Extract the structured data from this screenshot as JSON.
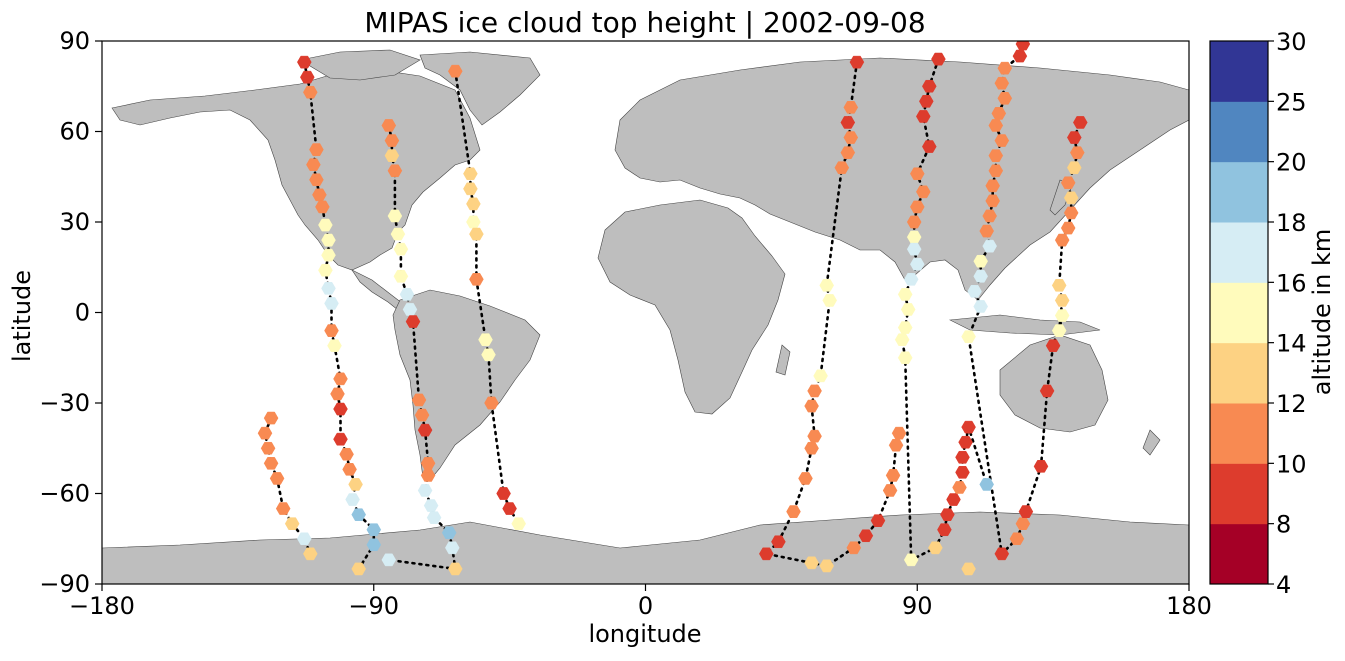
{
  "chart_data": {
    "type": "scatter",
    "title": "MIPAS ice cloud top height | 2002-09-08",
    "xlabel": "longitude",
    "ylabel": "latitude",
    "xlim": [
      -180,
      180
    ],
    "ylim": [
      -90,
      90
    ],
    "x_ticks": [
      "−180",
      "−90",
      "0",
      "90",
      "180"
    ],
    "x_tick_values": [
      -180,
      -90,
      0,
      90,
      180
    ],
    "y_ticks": [
      "−90",
      "−60",
      "−30",
      "0",
      "30",
      "60",
      "90"
    ],
    "y_tick_values": [
      -90,
      -60,
      -30,
      0,
      30,
      60,
      90
    ],
    "background": "world map, land shaded gray",
    "land_color": "#bebebe",
    "ocean_color": "#ffffff",
    "colorbar": {
      "label": "altitude in km",
      "boundaries": [
        4,
        8,
        10,
        12,
        14,
        16,
        18,
        20,
        25,
        30
      ],
      "tick_labels": [
        "4",
        "8",
        "10",
        "12",
        "14",
        "16",
        "18",
        "20",
        "25",
        "30"
      ],
      "colors": [
        "#a50026",
        "#d73027",
        "#f46d43",
        "#fdae61",
        "#fee090",
        "#e0f3f8",
        "#abd9e9",
        "#74add1",
        "#4575b4",
        "#313695"
      ],
      "display_colors": [
        "#a50026",
        "#dd3c2d",
        "#f88a52",
        "#fdd283",
        "#fffbbc",
        "#d6edf4",
        "#90c3df",
        "#5086c0",
        "#313695"
      ]
    },
    "series": [
      {
        "values": [
          [
            -113,
            83,
            9
          ],
          [
            -112,
            78,
            9
          ],
          [
            -111,
            73,
            10
          ],
          [
            -109,
            54,
            11
          ],
          [
            -110,
            49,
            11
          ],
          [
            -109,
            44,
            11
          ],
          [
            -108,
            39,
            11
          ],
          [
            -107,
            35,
            10
          ],
          [
            -106,
            29,
            14
          ],
          [
            -105,
            24,
            14
          ],
          [
            -105,
            19,
            14
          ],
          [
            -106,
            14,
            14
          ],
          [
            -105,
            8,
            16
          ],
          [
            -104,
            3,
            16
          ],
          [
            -104,
            -6,
            11
          ],
          [
            -103,
            -11,
            14
          ],
          [
            -101,
            -22,
            10
          ],
          [
            -102,
            -27,
            11
          ],
          [
            -101,
            -32,
            9
          ],
          [
            -101,
            -42,
            9
          ],
          [
            -99,
            -47,
            10
          ],
          [
            -98,
            -52,
            10
          ],
          [
            -96,
            -57,
            13
          ],
          [
            -97,
            -62,
            16
          ],
          [
            -95,
            -67,
            18
          ],
          [
            -90,
            -72,
            18
          ],
          [
            -90,
            -77,
            18
          ],
          [
            -95,
            -85,
            13
          ]
        ]
      },
      {
        "values": [
          [
            -85,
            62,
            10
          ],
          [
            -84,
            57,
            11
          ],
          [
            -84,
            52,
            12
          ],
          [
            -83,
            47,
            11
          ],
          [
            -83,
            32,
            14
          ],
          [
            -82,
            26,
            14
          ],
          [
            -81,
            21,
            14
          ],
          [
            -81,
            12,
            14
          ],
          [
            -79,
            6,
            16
          ],
          [
            -78,
            1,
            16
          ],
          [
            -77,
            -3,
            9
          ],
          [
            -75,
            -29,
            11
          ],
          [
            -74,
            -34,
            11
          ],
          [
            -73,
            -39,
            9
          ],
          [
            -72,
            -50,
            10
          ],
          [
            -72,
            -54,
            10
          ],
          [
            -73,
            -59,
            16
          ],
          [
            -71,
            -64,
            16
          ],
          [
            -70,
            -68,
            16
          ],
          [
            -65,
            -73,
            18
          ],
          [
            -64,
            -78,
            16
          ],
          [
            -63,
            -85,
            13
          ],
          [
            -85,
            -82,
            16
          ]
        ]
      },
      {
        "values": [
          [
            -63,
            80,
            10
          ],
          [
            -58,
            46,
            12
          ],
          [
            -58,
            41,
            12
          ],
          [
            -57,
            36,
            12
          ],
          [
            -57,
            30,
            14
          ],
          [
            -56,
            26,
            12
          ],
          [
            -56,
            11,
            11
          ],
          [
            -53,
            -9,
            14
          ],
          [
            -52,
            -14,
            14
          ],
          [
            -51,
            -30,
            11
          ],
          [
            -47,
            -60,
            8
          ],
          [
            -45,
            -65,
            8
          ],
          [
            -42,
            -70,
            14
          ]
        ]
      },
      {
        "values": [
          [
            -124,
            -35,
            11
          ],
          [
            -126,
            -40,
            11
          ],
          [
            -125,
            -45,
            10
          ],
          [
            -124,
            -50,
            11
          ],
          [
            -122,
            -55,
            11
          ],
          [
            -120,
            -65,
            10
          ],
          [
            -117,
            -70,
            13
          ],
          [
            -113,
            -75,
            16
          ],
          [
            -111,
            -80,
            13
          ]
        ]
      },
      {
        "values": [
          [
            70,
            83,
            9
          ],
          [
            68,
            68,
            10
          ],
          [
            67,
            63,
            9
          ],
          [
            68,
            58,
            10
          ],
          [
            67,
            53,
            11
          ],
          [
            65,
            48,
            10
          ],
          [
            60,
            9,
            14
          ],
          [
            61,
            4,
            14
          ],
          [
            58,
            -21,
            14
          ],
          [
            56,
            -26,
            11
          ],
          [
            55,
            -31,
            10
          ],
          [
            56,
            -41,
            11
          ],
          [
            55,
            -45,
            11
          ],
          [
            53,
            -55,
            11
          ],
          [
            49,
            -66,
            10
          ],
          [
            44,
            -76,
            9
          ],
          [
            40,
            -80,
            9
          ],
          [
            55,
            -83,
            13
          ],
          [
            60,
            -84,
            13
          ],
          [
            69,
            -78,
            11
          ],
          [
            73,
            -74,
            8
          ],
          [
            77,
            -69,
            8
          ],
          [
            81,
            -59,
            10
          ],
          [
            82,
            -54,
            11
          ],
          [
            83,
            -44,
            11
          ],
          [
            84,
            -40,
            10
          ]
        ]
      },
      {
        "values": [
          [
            97,
            84,
            9
          ],
          [
            94,
            75,
            9
          ],
          [
            93,
            70,
            8
          ],
          [
            92,
            65,
            8
          ],
          [
            94,
            55,
            9
          ],
          [
            90,
            46,
            10
          ],
          [
            92,
            40,
            11
          ],
          [
            90,
            35,
            11
          ],
          [
            89,
            30,
            10
          ],
          [
            89,
            25,
            14
          ],
          [
            89,
            21,
            16
          ],
          [
            90,
            16,
            16
          ],
          [
            88,
            11,
            16
          ],
          [
            86,
            6,
            14
          ],
          [
            87,
            1,
            14
          ],
          [
            86,
            -5,
            14
          ],
          [
            85,
            -9,
            14
          ],
          [
            86,
            -15,
            14
          ],
          [
            88,
            -82,
            14
          ],
          [
            96,
            -78,
            12
          ],
          [
            99,
            -72,
            8
          ],
          [
            100,
            -67,
            8
          ],
          [
            102,
            -62,
            8
          ],
          [
            104,
            -58,
            11
          ],
          [
            105,
            -53,
            8
          ],
          [
            105,
            -48,
            9
          ],
          [
            106,
            -43,
            9
          ],
          [
            107,
            -38,
            9
          ],
          [
            113,
            -57,
            18
          ]
        ]
      },
      {
        "values": [
          [
            125,
            89,
            9
          ],
          [
            124,
            85,
            9
          ],
          [
            119,
            81,
            10
          ],
          [
            118,
            76,
            10
          ],
          [
            119,
            71,
            10
          ],
          [
            117,
            66,
            11
          ],
          [
            116,
            62,
            11
          ],
          [
            118,
            57,
            11
          ],
          [
            116,
            52,
            10
          ],
          [
            116,
            47,
            10
          ],
          [
            115,
            42,
            11
          ],
          [
            115,
            37,
            10
          ],
          [
            114,
            32,
            11
          ],
          [
            113,
            27,
            10
          ],
          [
            114,
            22,
            16
          ],
          [
            111,
            17,
            14
          ],
          [
            111,
            12,
            16
          ],
          [
            109,
            7,
            16
          ],
          [
            111,
            2,
            16
          ],
          [
            107,
            -8,
            14
          ],
          [
            118,
            -80,
            9
          ],
          [
            123,
            -75,
            10
          ],
          [
            125,
            -70,
            11
          ],
          [
            126,
            -66,
            9
          ],
          [
            131,
            -51,
            9
          ],
          [
            133,
            -26,
            8
          ],
          [
            135,
            -11,
            9
          ],
          [
            138,
            -1,
            14
          ],
          [
            137,
            -6,
            14
          ],
          [
            138,
            4,
            13
          ],
          [
            137,
            9,
            13
          ],
          [
            138,
            24,
            11
          ],
          [
            140,
            28,
            11
          ],
          [
            141,
            33,
            11
          ],
          [
            141,
            38,
            12
          ],
          [
            140,
            43,
            11
          ],
          [
            142,
            48,
            12
          ],
          [
            143,
            53,
            11
          ],
          [
            142,
            58,
            8
          ],
          [
            144,
            63,
            8
          ]
        ]
      },
      {
        "values": [
          [
            107,
            -85,
            13
          ]
        ]
      }
    ],
    "track_note": "black dotted satellite orbit tracks without cloud detections"
  }
}
